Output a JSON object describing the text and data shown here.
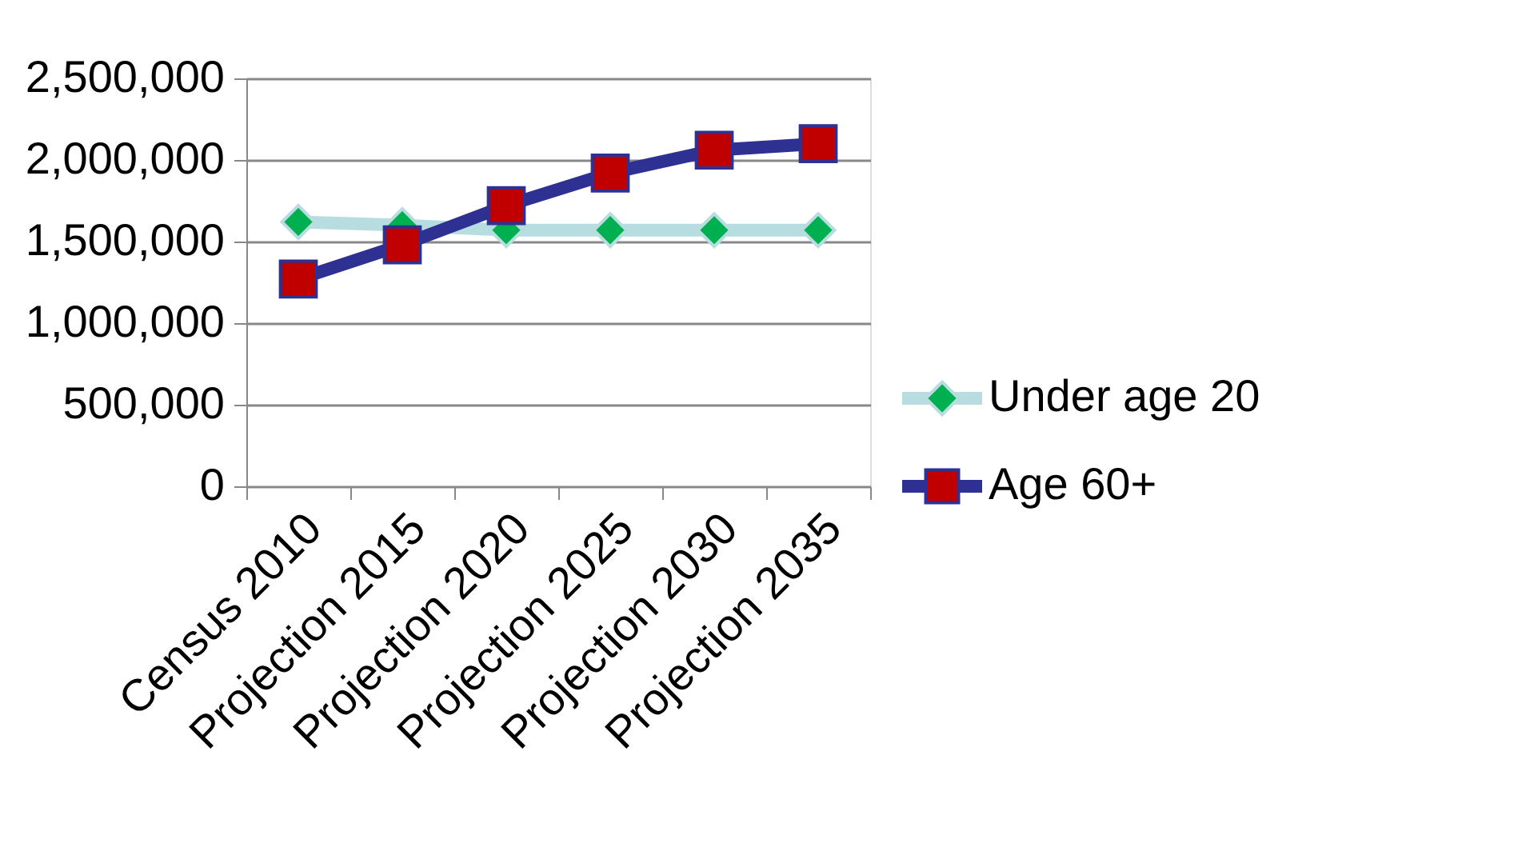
{
  "chart_data": {
    "type": "line",
    "categories": [
      "Census 2010",
      "Projection 2015",
      "Projection 2020",
      "Projection 2025",
      "Projection 2030",
      "Projection 2035"
    ],
    "series": [
      {
        "name": "Under age 20",
        "color": "#b7dde0",
        "marker": "diamond",
        "colors": [
          "#00b050",
          "#00b050",
          "#00b050",
          "#00b050",
          "#00b050",
          "#00b050"
        ],
        "values": [
          1620000,
          1600000,
          1570000,
          1570000,
          1570000,
          1570000
        ]
      },
      {
        "name": "Age 60+",
        "color": "#2e3192",
        "marker": "square",
        "colors": [
          "#c00000",
          "#c00000",
          "#c00000",
          "#c00000",
          "#c00000",
          "#c00000"
        ],
        "values": [
          1270000,
          1480000,
          1720000,
          1920000,
          2060000,
          2100000
        ]
      }
    ],
    "ylim": [
      0,
      2500000
    ],
    "yticks": [
      0,
      {
        "value": 500000,
        "label": "500,000"
      },
      {
        "value": 1000000,
        "label": "1,000,000"
      },
      {
        "value": 1500000,
        "label": "1,500,000"
      },
      {
        "value": 2000000,
        "label": "2,000,000"
      },
      {
        "value": 2500000,
        "label": "2,500,000"
      }
    ],
    "grid": "y",
    "legend": "right",
    "line_style": "solid"
  }
}
